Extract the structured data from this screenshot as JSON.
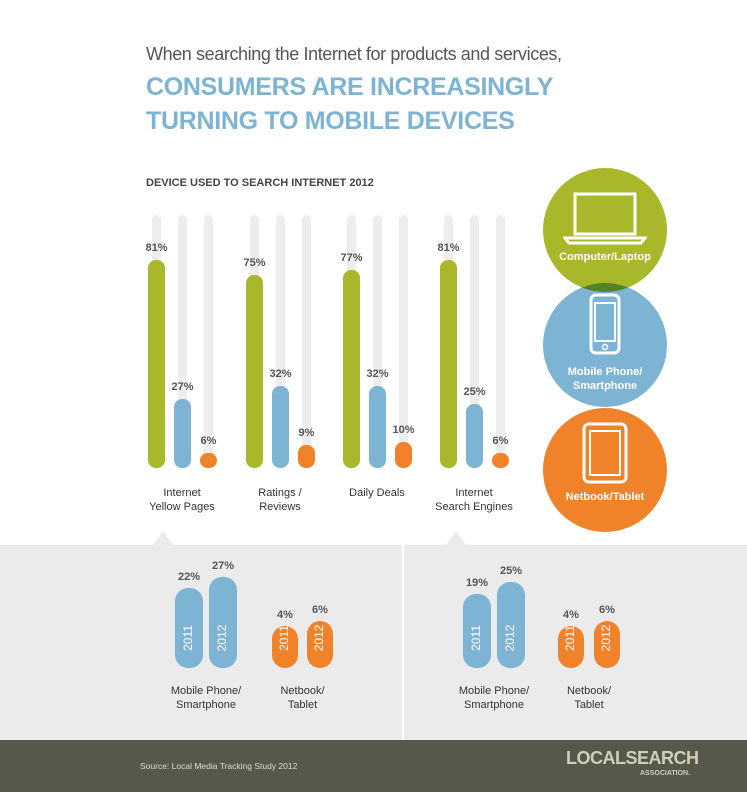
{
  "header": {
    "intro": "When searching the Internet for products and services,",
    "headline": "CONSUMERS ARE INCREASINGLY\nTURNING TO MOBILE DEVICES"
  },
  "chart_data": [
    {
      "type": "bar",
      "title": "DEVICE USED TO SEARCH INTERNET 2012",
      "categories": [
        "Internet\nYellow Pages",
        "Ratings /\nReviews",
        "Daily Deals",
        "Internet\nSearch Engines"
      ],
      "series": [
        {
          "name": "Computer/Laptop",
          "color": "#a9b82b",
          "values": [
            81,
            75,
            77,
            81
          ],
          "value_labels": [
            "81%",
            "75%",
            "77%",
            "81%"
          ]
        },
        {
          "name": "Mobile Phone/\nSmartphone",
          "color": "#7db4d4",
          "values": [
            27,
            32,
            32,
            25
          ],
          "value_labels": [
            "27%",
            "32%",
            "32%",
            "25%"
          ]
        },
        {
          "name": "Netbook/Tablet",
          "color": "#f0822a",
          "values": [
            6,
            9,
            10,
            6
          ],
          "value_labels": [
            "6%",
            "9%",
            "10%",
            "6%"
          ]
        }
      ]
    },
    {
      "type": "bar",
      "categories": [
        "2011",
        "2012"
      ],
      "series": [
        {
          "name": "Mobile Phone/\nSmartphone",
          "color": "#7db4d4",
          "values": [
            22,
            27
          ],
          "value_labels": [
            "22%",
            "27%"
          ]
        },
        {
          "name": "Netbook/\nTablet",
          "color": "#f0822a",
          "values": [
            4,
            6
          ],
          "value_labels": [
            "4%",
            "6%"
          ]
        }
      ]
    },
    {
      "type": "bar",
      "categories": [
        "2011",
        "2012"
      ],
      "series": [
        {
          "name": "Mobile Phone/\nSmartphone",
          "color": "#7db4d4",
          "values": [
            19,
            25
          ],
          "value_labels": [
            "19%",
            "25%"
          ]
        },
        {
          "name": "Netbook/\nTablet",
          "color": "#f0822a",
          "values": [
            4,
            6
          ],
          "value_labels": [
            "4%",
            "6%"
          ]
        }
      ]
    }
  ],
  "source": "Source: Local Media Tracking Study 2012",
  "logo": {
    "name": "LOCALSEARCH",
    "tagline": "ASSOCIATION."
  }
}
